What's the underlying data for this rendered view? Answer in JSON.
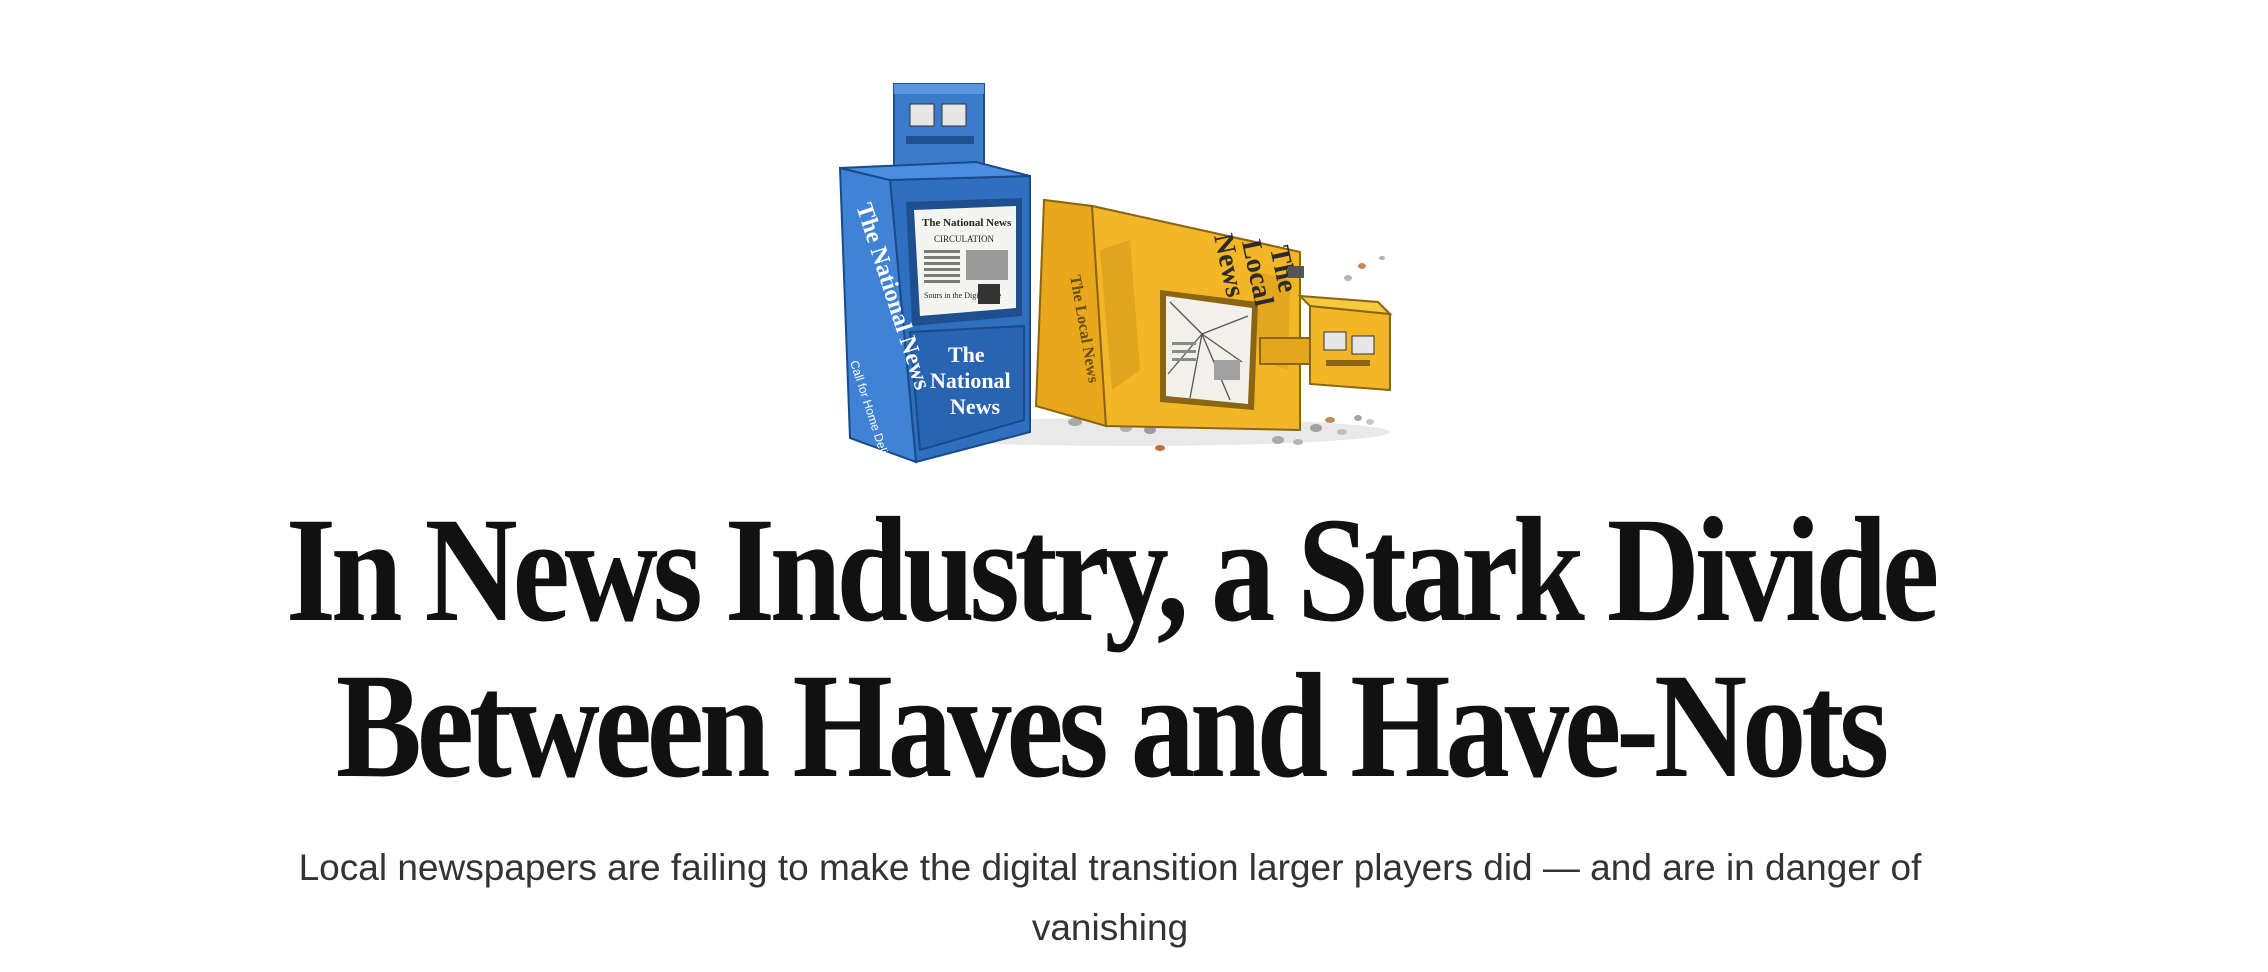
{
  "article": {
    "headline": "In News Industry, a Stark Divide Between Haves and Have-Nots",
    "dek": "Local newspapers are failing to make the digital transition larger players did — and are in danger of vanishing"
  },
  "illustration": {
    "blue_box": {
      "name_line_1": "The",
      "name_line_2": "National",
      "name_line_3": "News",
      "side_name": "The National News",
      "side_text": "Call for Home Delivery",
      "paper_masthead": "The National News",
      "paper_headline": "CIRCULATION",
      "paper_caption": "Sours in the Digital Age",
      "color": "#2f6fc0"
    },
    "yellow_box": {
      "name_line_1": "The",
      "name_line_2": "Local",
      "name_line_3": "News",
      "front_name": "The Local News",
      "color": "#f2b626"
    }
  }
}
